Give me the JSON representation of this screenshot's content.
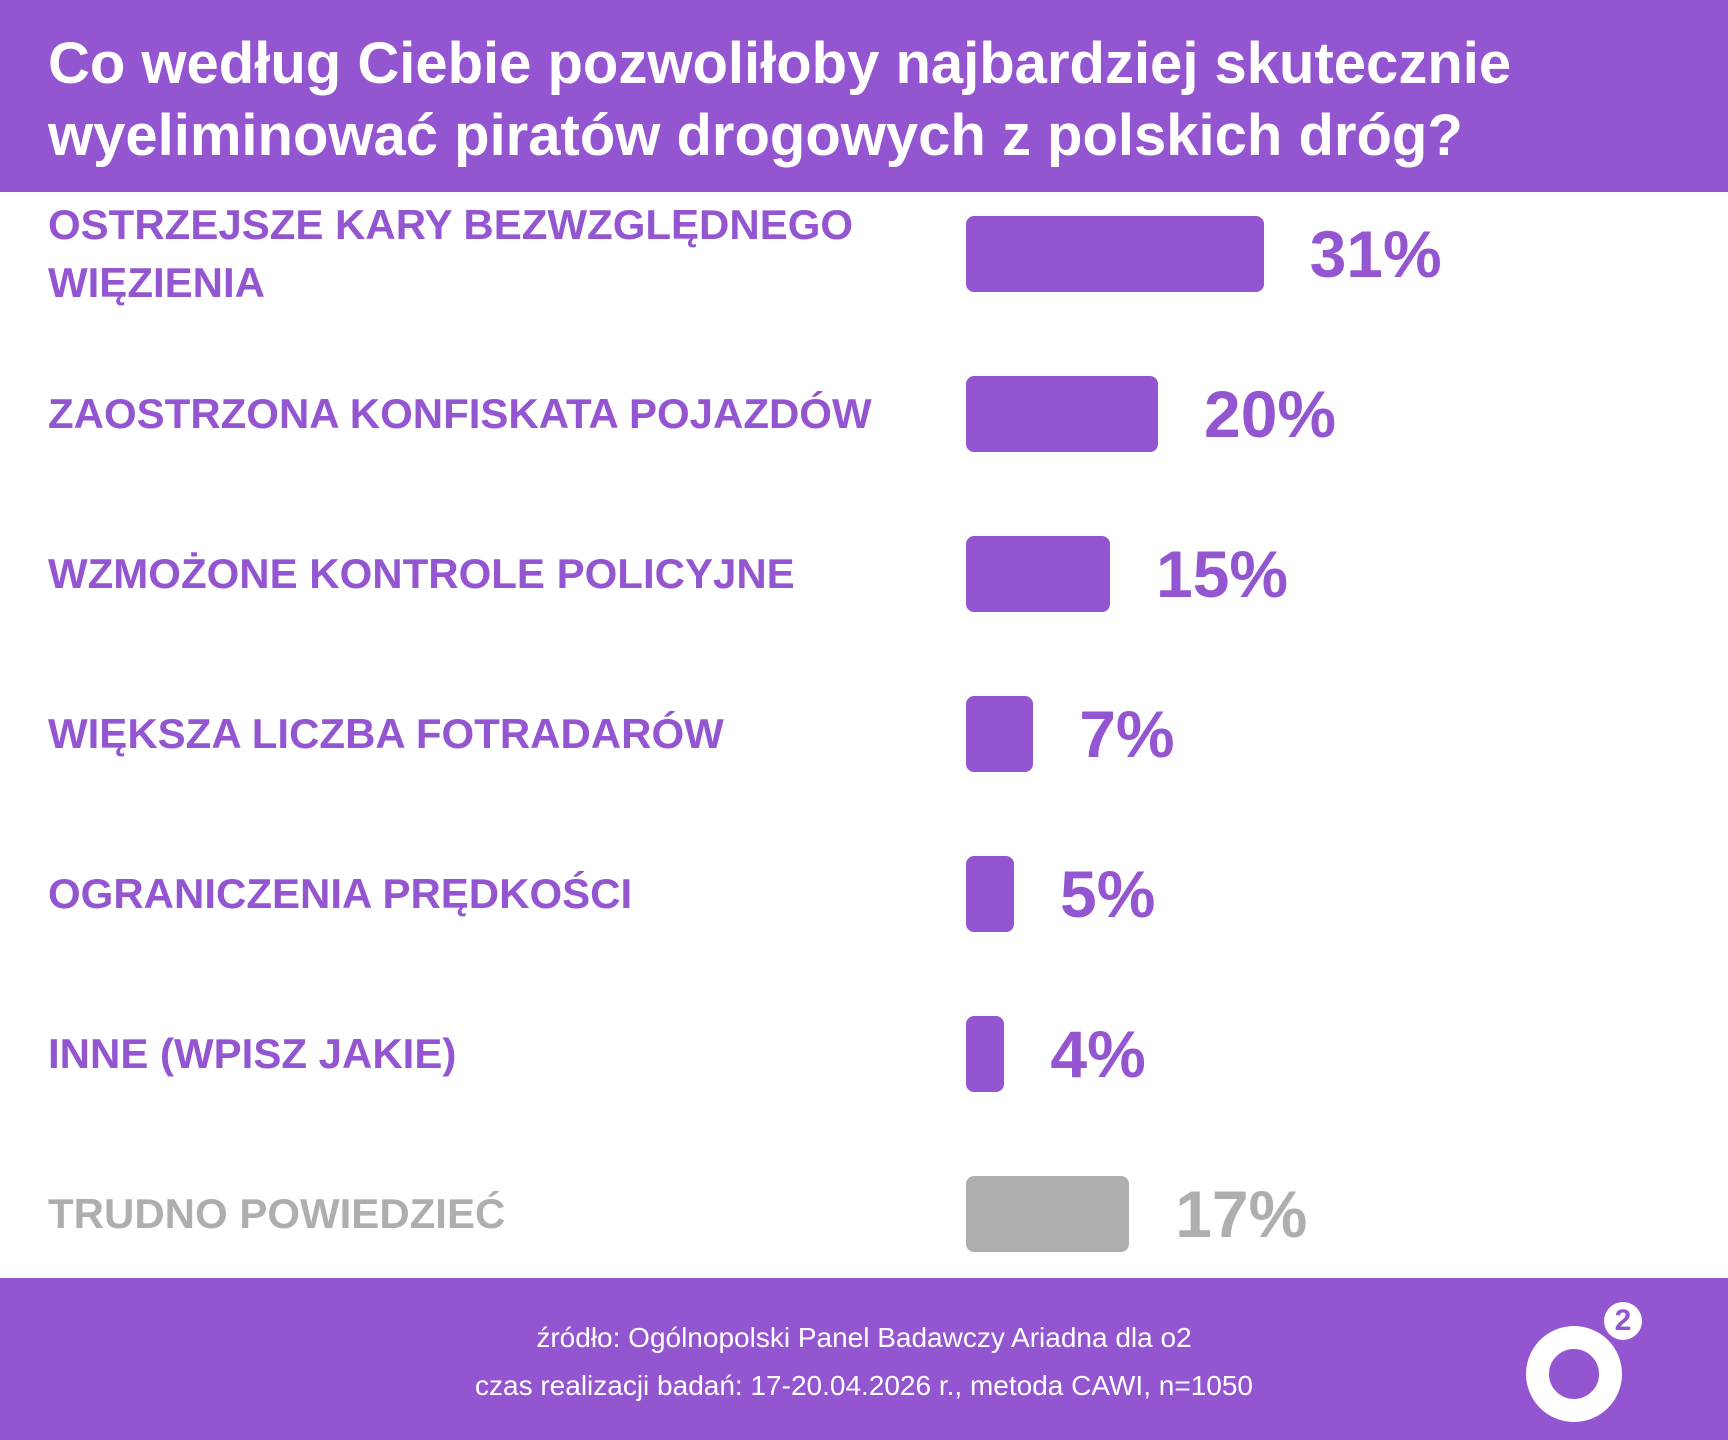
{
  "title": "Co według Ciebie pozwoliłoby najbardziej skutecznie wyeliminować piratów drogowych z polskich dróg?",
  "colors": {
    "accent": "#9455d0",
    "muted": "#aeaeae",
    "background": "#ffffff"
  },
  "chart_data": {
    "type": "bar",
    "orientation": "horizontal",
    "title": "Co według Ciebie pozwoliłoby najbardziej skutecznie wyeliminować piratów drogowych z polskich dróg?",
    "categories": [
      "OSTRZEJSZE  KARY BEZWZGLĘDNEGO WIĘZIENIA",
      "ZAOSTRZONA KONFISKATA POJAZDÓW",
      "WZMOŻONE KONTROLE POLICYJNE",
      "WIĘKSZA LICZBA FOTRADARÓW",
      "OGRANICZENIA PRĘDKOŚCI",
      "INNE (WPISZ JAKIE)",
      "TRUDNO POWIEDZIEĆ"
    ],
    "values": [
      31,
      20,
      15,
      7,
      5,
      4,
      17
    ],
    "value_labels": [
      "31%",
      "20%",
      "15%",
      "7%",
      "5%",
      "4%",
      "17%"
    ],
    "muted_categories": [
      "TRUDNO POWIEDZIEĆ"
    ],
    "unit": "%",
    "xlim": [
      0,
      31
    ],
    "grid": false,
    "legend": "none"
  },
  "footer": {
    "source": "źródło: Ogólnopolski Panel Badawczy Ariadna dla o2",
    "details": "czas realizacji badań: 17-20.04.2026 r., metoda CAWI, n=1050"
  },
  "logo": {
    "letter": "o",
    "superscript": "2"
  }
}
